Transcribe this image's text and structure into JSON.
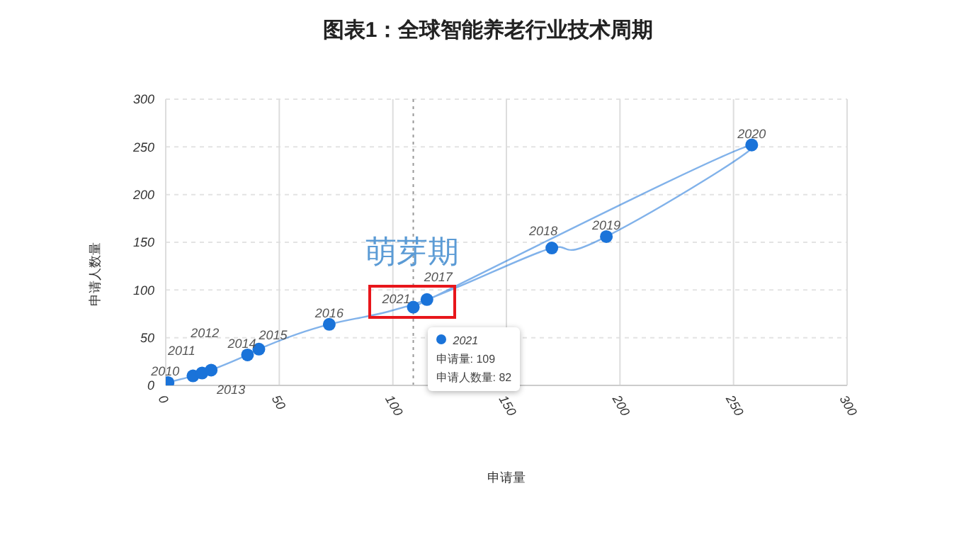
{
  "chart_data": {
    "type": "line",
    "title": "图表1：全球智能养老行业技术周期",
    "xlabel": "申请量",
    "ylabel": "申请人数量",
    "x": [
      1,
      12,
      16,
      20,
      36,
      41,
      72,
      115,
      170,
      194,
      258,
      109
    ],
    "series": [
      {
        "color": "#1a73d9",
        "values": [
          3,
          10,
          13,
          16,
          32,
          38,
          64,
          90,
          144,
          156,
          252,
          82
        ]
      }
    ],
    "xlim": [
      0,
      300
    ],
    "xticks": [
      0,
      50,
      100,
      150,
      200,
      250,
      300
    ],
    "ylim": [
      0,
      300
    ],
    "yticks": [
      0,
      50,
      100,
      150,
      200,
      250,
      300
    ],
    "grid": true,
    "marker": "circle",
    "line_style": "solid",
    "ref_lines": [
      {
        "axis": "x",
        "value": 109,
        "color": "#999999",
        "line_style": "dotted"
      }
    ],
    "annotations": [
      "萌芽期",
      "2021",
      "申请量: 109",
      "申请人数量: 82",
      {
        "text": "2010",
        "x": 1,
        "y": 3
      },
      {
        "text": "2011",
        "x": 12,
        "y": 10
      },
      {
        "text": "2012",
        "x": 16,
        "y": 13
      },
      {
        "text": "2013",
        "x": 20,
        "y": 16
      },
      {
        "text": "2014",
        "x": 36,
        "y": 32
      },
      {
        "text": "2015",
        "x": 41,
        "y": 38
      },
      {
        "text": "2016",
        "x": 72,
        "y": 64
      },
      {
        "text": "2017",
        "x": 115,
        "y": 90
      },
      {
        "text": "2018",
        "x": 170,
        "y": 144
      },
      {
        "text": "2019",
        "x": 194,
        "y": 156
      },
      {
        "text": "2020",
        "x": 258,
        "y": 252
      },
      {
        "text": "2021",
        "x": 109,
        "y": 82
      }
    ]
  }
}
